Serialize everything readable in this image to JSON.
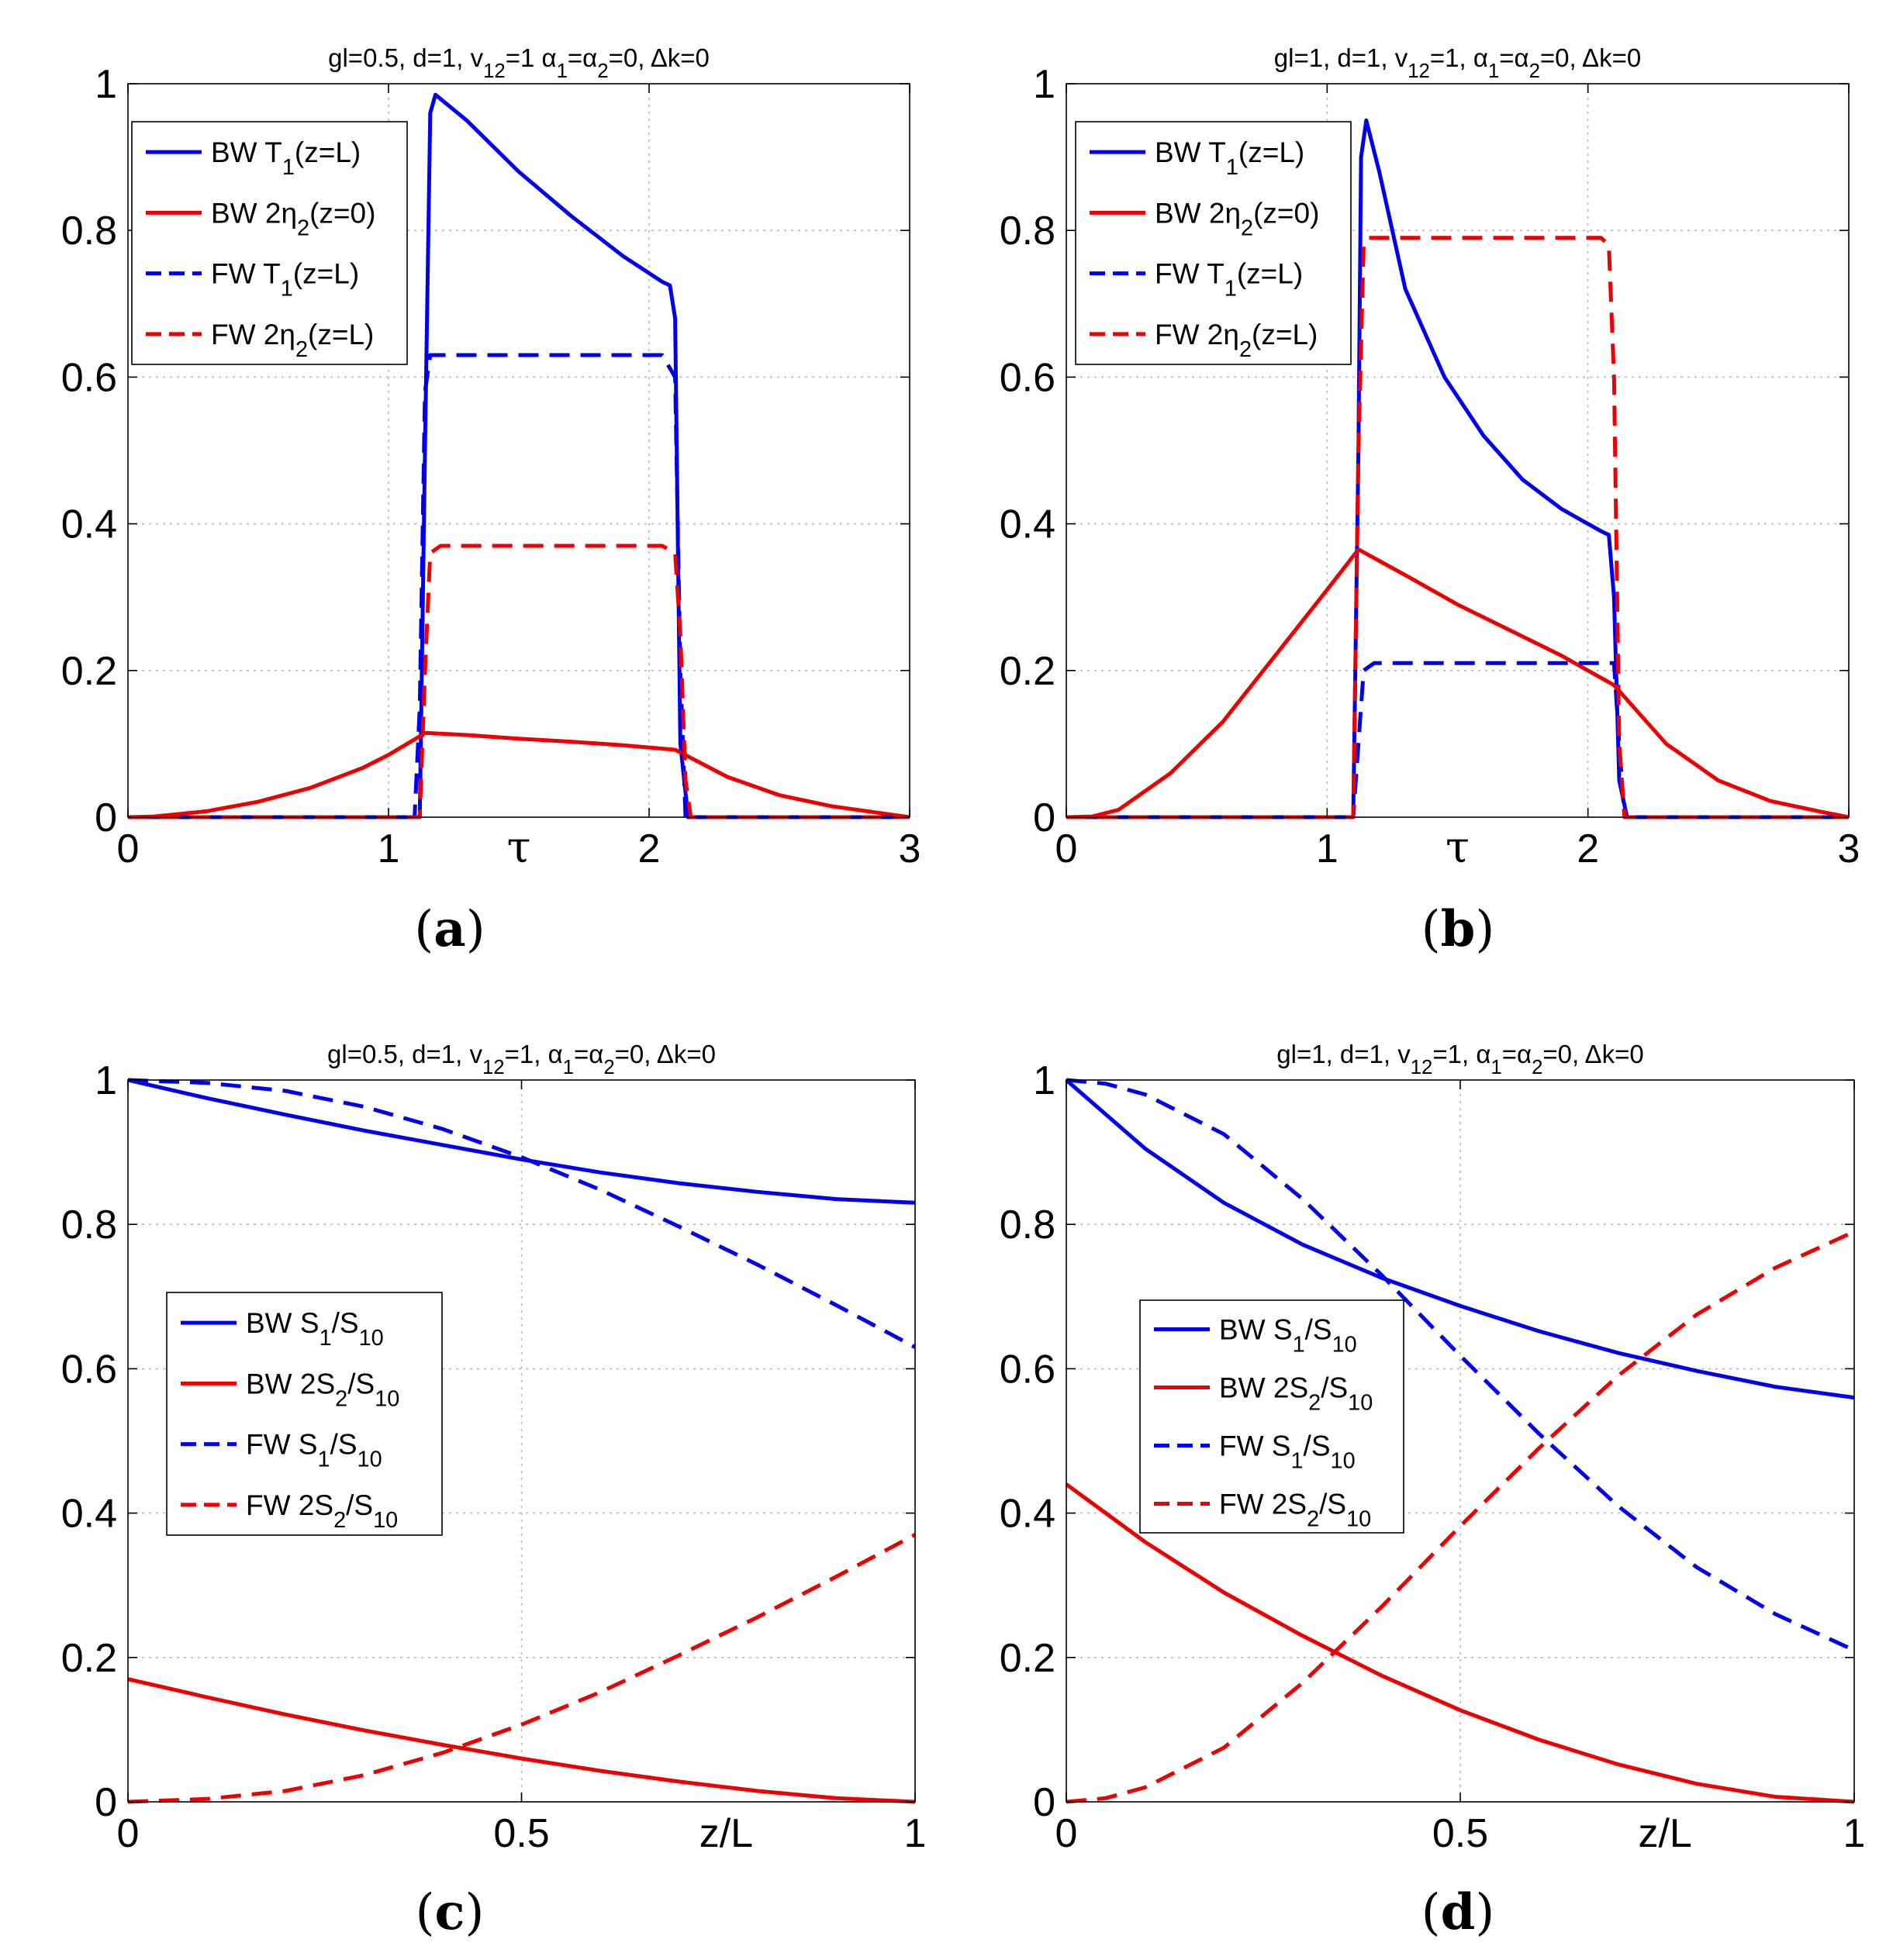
{
  "figure": {
    "panel_count": 4
  },
  "colors": {
    "blue": "#0000ee",
    "red": "#ee0000",
    "axis": "#000000",
    "grid": "#b8b8b8"
  },
  "chart_data": [
    {
      "panel": "a",
      "type": "line",
      "title": "gl=0.5, d=1, v_{12}=1 α_1=α_2=0, Δk=0",
      "xlabel": "τ",
      "ylabel": "",
      "xlim": [
        0,
        3
      ],
      "ylim": [
        0,
        1
      ],
      "xticks": [
        "0",
        "1",
        "2",
        "3"
      ],
      "yticks": [
        "0",
        "0.2",
        "0.4",
        "0.6",
        "0.8",
        "1"
      ],
      "grid": true,
      "legend_position": "top-left",
      "series": [
        {
          "name": "BW T_1(z=L)",
          "style": "solid",
          "color": "blue",
          "x": [
            0,
            1.0,
            1.12,
            1.14,
            1.16,
            1.18,
            1.3,
            1.5,
            1.7,
            1.9,
            2.05,
            2.08,
            2.1,
            2.12,
            2.15,
            3
          ],
          "y": [
            0,
            0,
            0,
            0.5,
            0.96,
            0.985,
            0.95,
            0.88,
            0.82,
            0.765,
            0.73,
            0.725,
            0.68,
            0.1,
            0,
            0
          ]
        },
        {
          "name": "BW 2η_2(z=0)",
          "style": "solid",
          "color": "red",
          "x": [
            0,
            0.1,
            0.3,
            0.5,
            0.7,
            0.9,
            1.0,
            1.1,
            1.14,
            1.3,
            1.5,
            1.7,
            1.9,
            2.1,
            2.3,
            2.5,
            2.7,
            2.9,
            3
          ],
          "y": [
            0,
            0.001,
            0.008,
            0.021,
            0.04,
            0.067,
            0.085,
            0.106,
            0.115,
            0.112,
            0.107,
            0.103,
            0.098,
            0.092,
            0.055,
            0.03,
            0.015,
            0.005,
            0
          ]
        },
        {
          "name": "FW T_1(z=L)",
          "style": "dashed",
          "color": "blue",
          "x": [
            0,
            1.1,
            1.12,
            1.14,
            1.16,
            1.2,
            2.05,
            2.1,
            2.12,
            2.14,
            3
          ],
          "y": [
            0,
            0,
            0.15,
            0.58,
            0.63,
            0.63,
            0.63,
            0.6,
            0.2,
            0,
            0
          ]
        },
        {
          "name": "FW 2η_2(z=L)",
          "style": "dashed",
          "color": "red",
          "x": [
            0,
            1.12,
            1.14,
            1.16,
            1.2,
            2.05,
            2.1,
            2.12,
            2.14,
            2.16,
            3
          ],
          "y": [
            0,
            0,
            0.2,
            0.36,
            0.37,
            0.37,
            0.36,
            0.25,
            0.05,
            0,
            0
          ]
        }
      ]
    },
    {
      "panel": "b",
      "type": "line",
      "title": "gl=1, d=1, v_{12}=1, α_1=α_2=0, Δk=0",
      "xlabel": "τ",
      "ylabel": "",
      "xlim": [
        0,
        3
      ],
      "ylim": [
        0,
        1
      ],
      "xticks": [
        "0",
        "1",
        "2",
        "3"
      ],
      "yticks": [
        "0",
        "0.2",
        "0.4",
        "0.6",
        "0.8",
        "1"
      ],
      "grid": true,
      "legend_position": "top-left",
      "series": [
        {
          "name": "BW T_1(z=L)",
          "style": "solid",
          "color": "blue",
          "x": [
            0,
            1.1,
            1.12,
            1.13,
            1.15,
            1.2,
            1.3,
            1.45,
            1.6,
            1.75,
            1.9,
            2.05,
            2.08,
            2.1,
            2.12,
            2.15,
            3
          ],
          "y": [
            0,
            0,
            0.5,
            0.9,
            0.95,
            0.88,
            0.72,
            0.6,
            0.52,
            0.46,
            0.42,
            0.39,
            0.385,
            0.3,
            0.05,
            0,
            0
          ]
        },
        {
          "name": "BW 2η_2(z=0)",
          "style": "solid",
          "color": "red",
          "x": [
            0,
            0.1,
            0.2,
            0.4,
            0.6,
            0.8,
            1.0,
            1.12,
            1.3,
            1.5,
            1.7,
            1.9,
            2.1,
            2.3,
            2.5,
            2.7,
            2.9,
            3
          ],
          "y": [
            0,
            0.001,
            0.01,
            0.06,
            0.13,
            0.22,
            0.31,
            0.365,
            0.33,
            0.29,
            0.255,
            0.22,
            0.18,
            0.1,
            0.05,
            0.022,
            0.007,
            0
          ]
        },
        {
          "name": "FW T_1(z=L)",
          "style": "dashed",
          "color": "blue",
          "x": [
            0,
            1.1,
            1.12,
            1.14,
            1.18,
            2.05,
            2.1,
            2.12,
            2.14,
            3
          ],
          "y": [
            0,
            0,
            0.1,
            0.2,
            0.21,
            0.21,
            0.21,
            0.1,
            0,
            0
          ]
        },
        {
          "name": "FW 2η_2(z=L)",
          "style": "dashed",
          "color": "red",
          "x": [
            0,
            1.1,
            1.12,
            1.14,
            1.16,
            2.05,
            2.08,
            2.1,
            2.12,
            2.14,
            3
          ],
          "y": [
            0,
            0,
            0.5,
            0.78,
            0.79,
            0.79,
            0.78,
            0.6,
            0.1,
            0,
            0
          ]
        }
      ]
    },
    {
      "panel": "c",
      "type": "line",
      "title": "gl=0.5, d=1, v_{12}=1, α_1=α_2=0, Δk=0",
      "xlabel": "z/L",
      "ylabel": "",
      "xlim": [
        0,
        1
      ],
      "ylim": [
        0,
        1
      ],
      "xticks": [
        "0",
        "0.5",
        "1"
      ],
      "yticks": [
        "0",
        "0.2",
        "0.4",
        "0.6",
        "0.8",
        "1"
      ],
      "grid": true,
      "legend_position": "center-left",
      "series": [
        {
          "name": "BW S_1/S_{10}",
          "style": "solid",
          "color": "blue",
          "x": [
            0,
            0.1,
            0.2,
            0.3,
            0.4,
            0.5,
            0.6,
            0.7,
            0.8,
            0.9,
            1.0
          ],
          "y": [
            1.0,
            0.975,
            0.952,
            0.93,
            0.91,
            0.89,
            0.872,
            0.857,
            0.845,
            0.835,
            0.83
          ]
        },
        {
          "name": "BW 2S_2/S_{10}",
          "style": "solid",
          "color": "red",
          "x": [
            0,
            0.1,
            0.2,
            0.3,
            0.4,
            0.5,
            0.6,
            0.7,
            0.8,
            0.9,
            1.0
          ],
          "y": [
            0.17,
            0.145,
            0.121,
            0.099,
            0.079,
            0.06,
            0.043,
            0.028,
            0.015,
            0.005,
            0.0
          ]
        },
        {
          "name": "FW S_1/S_{10}",
          "style": "dashed",
          "color": "blue",
          "x": [
            0,
            0.1,
            0.2,
            0.3,
            0.4,
            0.5,
            0.6,
            0.7,
            0.8,
            0.9,
            1.0
          ],
          "y": [
            1.0,
            0.996,
            0.985,
            0.963,
            0.932,
            0.893,
            0.848,
            0.797,
            0.744,
            0.688,
            0.63
          ]
        },
        {
          "name": "FW 2S_2/S_{10}",
          "style": "dashed",
          "color": "red",
          "x": [
            0,
            0.1,
            0.2,
            0.3,
            0.4,
            0.5,
            0.6,
            0.7,
            0.8,
            0.9,
            1.0
          ],
          "y": [
            0.0,
            0.004,
            0.015,
            0.037,
            0.068,
            0.107,
            0.152,
            0.203,
            0.256,
            0.312,
            0.37
          ]
        }
      ]
    },
    {
      "panel": "d",
      "type": "line",
      "title": "gl=1, d=1, v_{12}=1, α_1=α_2=0, Δk=0",
      "xlabel": "z/L",
      "ylabel": "",
      "xlim": [
        0,
        1
      ],
      "ylim": [
        0,
        1
      ],
      "xticks": [
        "0",
        "0.5",
        "1"
      ],
      "yticks": [
        "0",
        "0.2",
        "0.4",
        "0.6",
        "0.8",
        "1"
      ],
      "grid": true,
      "legend_position": "center-left",
      "series": [
        {
          "name": "BW S_1/S_{10}",
          "style": "solid",
          "color": "blue",
          "x": [
            0,
            0.1,
            0.2,
            0.3,
            0.4,
            0.5,
            0.6,
            0.7,
            0.8,
            0.9,
            1.0
          ],
          "y": [
            1.0,
            0.905,
            0.83,
            0.772,
            0.726,
            0.687,
            0.652,
            0.622,
            0.597,
            0.575,
            0.56
          ]
        },
        {
          "name": "BW 2S_2/S_{10}",
          "style": "solid",
          "color": "red",
          "x": [
            0,
            0.1,
            0.2,
            0.3,
            0.4,
            0.5,
            0.6,
            0.7,
            0.8,
            0.9,
            1.0
          ],
          "y": [
            0.44,
            0.36,
            0.29,
            0.23,
            0.175,
            0.127,
            0.086,
            0.052,
            0.025,
            0.007,
            0.0
          ]
        },
        {
          "name": "FW S_1/S_{10}",
          "style": "dashed",
          "color": "blue",
          "x": [
            0,
            0.05,
            0.1,
            0.2,
            0.3,
            0.4,
            0.5,
            0.6,
            0.7,
            0.8,
            0.9,
            1.0
          ],
          "y": [
            1.0,
            0.995,
            0.98,
            0.925,
            0.835,
            0.73,
            0.618,
            0.51,
            0.41,
            0.325,
            0.26,
            0.21
          ]
        },
        {
          "name": "FW 2S_2/S_{10}",
          "style": "dashed",
          "color": "red",
          "x": [
            0,
            0.05,
            0.1,
            0.2,
            0.3,
            0.4,
            0.5,
            0.6,
            0.7,
            0.8,
            0.9,
            1.0
          ],
          "y": [
            0.0,
            0.005,
            0.02,
            0.075,
            0.165,
            0.27,
            0.382,
            0.49,
            0.59,
            0.675,
            0.74,
            0.79
          ]
        }
      ]
    }
  ]
}
